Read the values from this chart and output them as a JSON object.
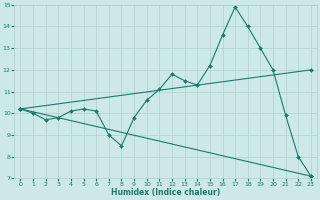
{
  "xlabel": "Humidex (Indice chaleur)",
  "background_color": "#cde8e8",
  "grid_color": "#b0d0d0",
  "line_color": "#1a7a6e",
  "xlim": [
    -0.5,
    23.5
  ],
  "ylim": [
    7,
    15
  ],
  "xticks": [
    0,
    1,
    2,
    3,
    4,
    5,
    6,
    7,
    8,
    9,
    10,
    11,
    12,
    13,
    14,
    15,
    16,
    17,
    18,
    19,
    20,
    21,
    22,
    23
  ],
  "yticks": [
    7,
    8,
    9,
    10,
    11,
    12,
    13,
    14,
    15
  ],
  "line1_x": [
    0,
    1,
    2,
    3,
    4,
    5,
    6,
    7,
    8,
    9,
    10,
    11,
    12,
    13,
    14,
    15,
    16,
    17,
    18,
    19,
    20,
    21,
    22,
    23
  ],
  "line1_y": [
    10.2,
    10.0,
    9.7,
    9.8,
    10.1,
    10.2,
    10.1,
    9.0,
    8.5,
    9.8,
    10.6,
    11.1,
    11.8,
    11.5,
    11.3,
    12.2,
    13.6,
    14.9,
    14.0,
    13.0,
    12.0,
    9.9,
    8.0,
    7.1
  ],
  "line2_x": [
    0,
    23
  ],
  "line2_y": [
    10.2,
    12.0
  ],
  "line3_x": [
    0,
    23
  ],
  "line3_y": [
    10.2,
    7.1
  ]
}
